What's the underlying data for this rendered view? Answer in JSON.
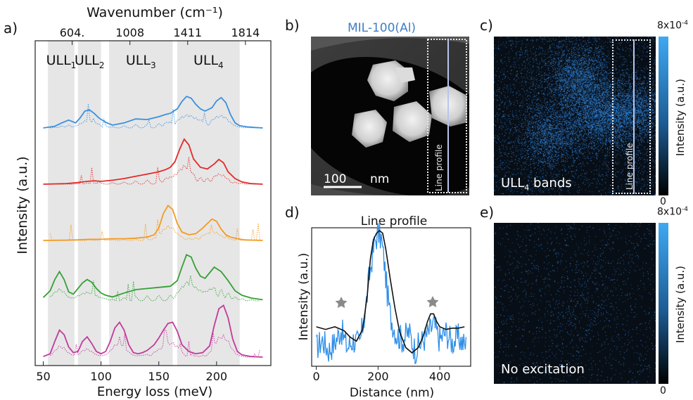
{
  "panels": {
    "a": {
      "label": "a)",
      "top_axis_title": "Wavenumber (cm⁻¹)",
      "top_ticks": [
        "604.",
        "1008",
        "1411",
        "1814"
      ],
      "top_tick_values_mev": [
        75,
        125,
        175,
        225
      ],
      "bottom_ticks": [
        "50",
        "100",
        "150",
        "200"
      ],
      "bottom_tick_values": [
        50,
        100,
        150,
        200
      ],
      "xlabel": "Energy loss (meV)",
      "ylabel": "Intensity (a.u.)",
      "xlim": [
        43,
        247
      ],
      "bands": [
        {
          "label": "ULL",
          "sub": "1",
          "range": [
            54,
            77
          ]
        },
        {
          "label": "ULL",
          "sub": "2",
          "range": [
            80,
            100
          ]
        },
        {
          "label": "ULL",
          "sub": "3",
          "range": [
            107,
            162
          ]
        },
        {
          "label": "ULL",
          "sub": "4",
          "range": [
            166,
            220
          ]
        }
      ],
      "series_colors": [
        "#3a8fe0",
        "#e22b2b",
        "#f39a23",
        "#35a035",
        "#c23a9b"
      ]
    },
    "b": {
      "label": "b)",
      "title": "MIL-100(Al)",
      "title_color": "#3f7fc2",
      "scale_bar": "100",
      "scale_unit": "nm",
      "profile_label": "Line profile"
    },
    "c": {
      "label": "c)",
      "overlay": "ULL",
      "overlay_sub": "4",
      "overlay_rest": " bands",
      "profile_label": "Line profile",
      "cbar_max_base": "8x10",
      "cbar_max_exp": "-4",
      "cbar_min": "0",
      "cbar_label": "Intensity (a.u.)"
    },
    "d": {
      "label": "d)",
      "title": "Line profile",
      "xlabel": "Distance (nm)",
      "ylabel": "Intensity (a.u.)",
      "x_ticks": [
        "0",
        "200",
        "400"
      ],
      "x_tick_values": [
        0,
        200,
        400
      ],
      "xlim": [
        -15,
        500
      ]
    },
    "e": {
      "label": "e)",
      "overlay": "No excitation",
      "cbar_max_base": "8x10",
      "cbar_max_exp": "-4",
      "cbar_min": "0",
      "cbar_label": "Intensity (a.u.)"
    }
  },
  "chart_data": [
    {
      "type": "line",
      "panel": "a",
      "xlabel": "Energy loss (meV)",
      "ylabel": "Intensity (a.u.)",
      "xlim": [
        43,
        247
      ],
      "series": [
        {
          "color": "#3a8fe0",
          "style": "solid",
          "x": [
            50,
            60,
            66,
            72,
            78,
            82,
            86,
            90,
            94,
            98,
            104,
            110,
            120,
            130,
            140,
            150,
            156,
            160,
            166,
            170,
            174,
            178,
            182,
            186,
            190,
            196,
            200,
            204,
            208,
            212,
            216,
            220,
            226,
            232,
            240
          ],
          "y": [
            0.0,
            0.03,
            0.09,
            0.14,
            0.09,
            0.18,
            0.3,
            0.32,
            0.26,
            0.18,
            0.1,
            0.05,
            0.09,
            0.16,
            0.15,
            0.2,
            0.24,
            0.26,
            0.34,
            0.47,
            0.56,
            0.53,
            0.42,
            0.34,
            0.3,
            0.36,
            0.48,
            0.54,
            0.45,
            0.24,
            0.09,
            0.04,
            0.02,
            0.01,
            0.0
          ]
        },
        {
          "color": "#e22b2b",
          "style": "solid",
          "x": [
            50,
            70,
            80,
            88,
            94,
            100,
            110,
            120,
            130,
            140,
            150,
            156,
            160,
            164,
            168,
            172,
            176,
            180,
            186,
            192,
            198,
            202,
            206,
            210,
            216,
            222,
            230,
            240
          ],
          "y": [
            0.0,
            0.01,
            0.03,
            0.05,
            0.06,
            0.05,
            0.07,
            0.1,
            0.14,
            0.18,
            0.22,
            0.26,
            0.3,
            0.4,
            0.62,
            0.8,
            0.7,
            0.45,
            0.3,
            0.27,
            0.36,
            0.44,
            0.38,
            0.22,
            0.1,
            0.04,
            0.01,
            0.0
          ]
        },
        {
          "color": "#f39a23",
          "style": "solid",
          "x": [
            50,
            70,
            80,
            90,
            100,
            110,
            120,
            130,
            140,
            146,
            150,
            154,
            158,
            162,
            166,
            170,
            176,
            182,
            188,
            192,
            196,
            200,
            204,
            208,
            212,
            218,
            224,
            232,
            240
          ],
          "y": [
            0.0,
            0.005,
            0.01,
            0.02,
            0.02,
            0.03,
            0.03,
            0.04,
            0.06,
            0.1,
            0.22,
            0.48,
            0.62,
            0.55,
            0.3,
            0.15,
            0.1,
            0.12,
            0.22,
            0.3,
            0.38,
            0.34,
            0.2,
            0.1,
            0.06,
            0.03,
            0.01,
            0.005,
            0.0
          ]
        },
        {
          "color": "#35a035",
          "style": "solid",
          "x": [
            50,
            56,
            60,
            64,
            68,
            72,
            76,
            80,
            84,
            88,
            92,
            96,
            100,
            104,
            110,
            120,
            130,
            140,
            150,
            160,
            166,
            170,
            174,
            178,
            182,
            186,
            190,
            194,
            198,
            204,
            210,
            216,
            222,
            230,
            240
          ],
          "y": [
            0.06,
            0.18,
            0.38,
            0.52,
            0.38,
            0.16,
            0.12,
            0.22,
            0.32,
            0.38,
            0.33,
            0.22,
            0.14,
            0.1,
            0.07,
            0.14,
            0.2,
            0.22,
            0.24,
            0.26,
            0.36,
            0.6,
            0.82,
            0.78,
            0.58,
            0.44,
            0.4,
            0.5,
            0.6,
            0.52,
            0.36,
            0.18,
            0.1,
            0.05,
            0.02
          ]
        },
        {
          "color": "#c23a9b",
          "style": "solid",
          "x": [
            50,
            56,
            60,
            64,
            68,
            72,
            76,
            80,
            84,
            88,
            92,
            96,
            100,
            104,
            108,
            112,
            116,
            120,
            124,
            128,
            132,
            136,
            140,
            146,
            150,
            154,
            158,
            162,
            166,
            170,
            176,
            182,
            188,
            194,
            198,
            202,
            206,
            210,
            214,
            218,
            222,
            230,
            240
          ],
          "y": [
            0.01,
            0.06,
            0.28,
            0.48,
            0.4,
            0.18,
            0.08,
            0.1,
            0.28,
            0.36,
            0.24,
            0.1,
            0.06,
            0.1,
            0.28,
            0.52,
            0.62,
            0.48,
            0.22,
            0.08,
            0.06,
            0.08,
            0.12,
            0.22,
            0.34,
            0.48,
            0.6,
            0.62,
            0.46,
            0.22,
            0.1,
            0.06,
            0.08,
            0.2,
            0.56,
            0.86,
            0.92,
            0.7,
            0.32,
            0.1,
            0.04,
            0.01,
            0.0
          ]
        }
      ]
    },
    {
      "type": "line",
      "panel": "d",
      "title": "Line profile",
      "xlabel": "Distance (nm)",
      "ylabel": "Intensity (a.u.)",
      "xlim": [
        -15,
        500
      ],
      "series": [
        {
          "color": "#111111",
          "x": [
            0,
            30,
            60,
            90,
            110,
            130,
            150,
            165,
            175,
            185,
            195,
            205,
            215,
            225,
            240,
            255,
            270,
            290,
            310,
            330,
            345,
            360,
            370,
            380,
            390,
            400,
            420,
            440,
            460,
            480
          ],
          "y": [
            0.26,
            0.24,
            0.26,
            0.23,
            0.18,
            0.15,
            0.24,
            0.5,
            0.78,
            0.93,
            0.98,
            1.0,
            0.98,
            0.86,
            0.62,
            0.4,
            0.22,
            0.1,
            0.06,
            0.1,
            0.18,
            0.3,
            0.36,
            0.36,
            0.3,
            0.26,
            0.24,
            0.25,
            0.25,
            0.26
          ]
        },
        {
          "color": "#2f8fe8",
          "x": [
            0,
            20,
            40,
            60,
            80,
            100,
            120,
            140,
            160,
            170,
            180,
            190,
            200,
            210,
            220,
            230,
            240,
            260,
            280,
            300,
            320,
            340,
            360,
            380,
            400,
            420,
            440,
            460,
            480
          ],
          "y": [
            0.1,
            0.16,
            0.08,
            0.14,
            0.24,
            0.1,
            0.16,
            0.12,
            0.4,
            0.62,
            0.78,
            0.92,
            0.98,
            0.94,
            0.76,
            0.52,
            0.34,
            0.2,
            0.16,
            0.22,
            0.08,
            0.14,
            0.2,
            0.28,
            0.16,
            0.22,
            0.14,
            0.18,
            0.12
          ]
        }
      ]
    }
  ]
}
